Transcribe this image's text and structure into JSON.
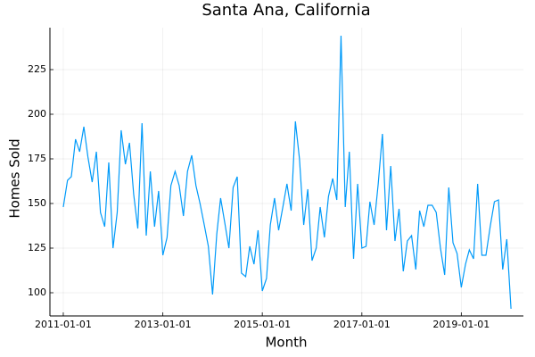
{
  "chart_data": {
    "type": "line",
    "title": "Santa Ana, California",
    "x_label": "Month",
    "y_label": "Homes Sold",
    "x": [
      "2011-01-01",
      "2011-02-01",
      "2011-03-01",
      "2011-04-01",
      "2011-05-01",
      "2011-06-01",
      "2011-07-01",
      "2011-08-01",
      "2011-09-01",
      "2011-10-01",
      "2011-11-01",
      "2011-12-01",
      "2012-01-01",
      "2012-02-01",
      "2012-03-01",
      "2012-04-01",
      "2012-05-01",
      "2012-06-01",
      "2012-07-01",
      "2012-08-01",
      "2012-09-01",
      "2012-10-01",
      "2012-11-01",
      "2012-12-01",
      "2013-01-01",
      "2013-02-01",
      "2013-03-01",
      "2013-04-01",
      "2013-05-01",
      "2013-06-01",
      "2013-07-01",
      "2013-08-01",
      "2013-09-01",
      "2013-10-01",
      "2013-11-01",
      "2013-12-01",
      "2014-01-01",
      "2014-02-01",
      "2014-03-01",
      "2014-04-01",
      "2014-05-01",
      "2014-06-01",
      "2014-07-01",
      "2014-08-01",
      "2014-09-01",
      "2014-10-01",
      "2014-11-01",
      "2014-12-01",
      "2015-01-01",
      "2015-02-01",
      "2015-03-01",
      "2015-04-01",
      "2015-05-01",
      "2015-06-01",
      "2015-07-01",
      "2015-08-01",
      "2015-09-01",
      "2015-10-01",
      "2015-11-01",
      "2015-12-01",
      "2016-01-01",
      "2016-02-01",
      "2016-03-01",
      "2016-04-01",
      "2016-05-01",
      "2016-06-01",
      "2016-07-01",
      "2016-08-01",
      "2016-09-01",
      "2016-10-01",
      "2016-11-01",
      "2016-12-01",
      "2017-01-01",
      "2017-02-01",
      "2017-03-01",
      "2017-04-01",
      "2017-05-01",
      "2017-06-01",
      "2017-07-01",
      "2017-08-01",
      "2017-09-01",
      "2017-10-01",
      "2017-11-01",
      "2017-12-01",
      "2018-01-01",
      "2018-02-01",
      "2018-03-01",
      "2018-04-01",
      "2018-05-01",
      "2018-06-01",
      "2018-07-01",
      "2018-08-01",
      "2018-09-01",
      "2018-10-01",
      "2018-11-01",
      "2018-12-01",
      "2019-01-01",
      "2019-02-01",
      "2019-03-01",
      "2019-04-01",
      "2019-05-01",
      "2019-06-01",
      "2019-07-01",
      "2019-08-01",
      "2019-09-01",
      "2019-10-01",
      "2019-11-01",
      "2019-12-01",
      "2020-01-01"
    ],
    "series": [
      {
        "name": "Homes Sold",
        "color": "#009af9",
        "values": [
          148,
          163,
          165,
          186,
          179,
          193,
          176,
          162,
          179,
          145,
          137,
          173,
          125,
          145,
          191,
          172,
          184,
          155,
          136,
          195,
          132,
          168,
          137,
          157,
          121,
          131,
          160,
          168,
          160,
          143,
          168,
          177,
          160,
          150,
          138,
          126,
          99,
          133,
          153,
          139,
          125,
          159,
          165,
          111,
          109,
          126,
          116,
          135,
          101,
          108,
          138,
          153,
          135,
          148,
          161,
          146,
          196,
          175,
          138,
          158,
          118,
          125,
          148,
          131,
          154,
          164,
          152,
          244,
          148,
          179,
          119,
          161,
          125,
          126,
          151,
          138,
          161,
          189,
          135,
          171,
          129,
          147,
          112,
          129,
          132,
          113,
          146,
          137,
          149,
          149,
          145,
          125,
          110,
          159,
          128,
          122,
          103,
          116,
          124,
          119,
          161,
          121,
          121,
          137,
          151,
          152,
          113,
          130,
          91
        ]
      }
    ],
    "xlim": [
      "2010-09-25",
      "2020-04-01"
    ],
    "xticks": [
      "2011-01-01",
      "2013-01-01",
      "2015-01-01",
      "2017-01-01",
      "2019-01-01"
    ],
    "ylim": [
      87,
      248.5
    ],
    "yticks": [
      100,
      125,
      150,
      175,
      200,
      225
    ],
    "grid": true
  }
}
